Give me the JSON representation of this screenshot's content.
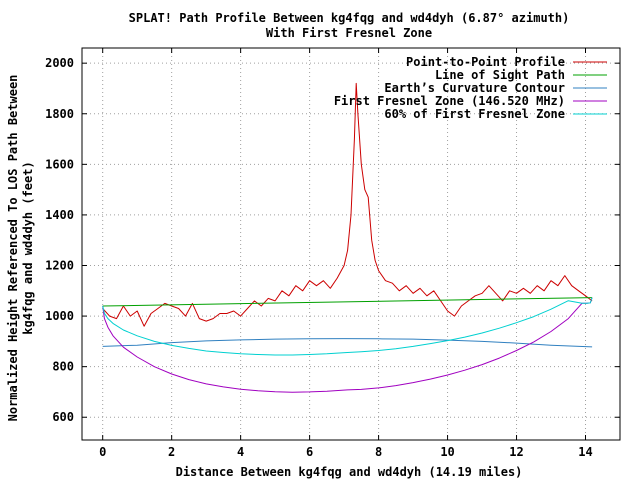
{
  "chart_data": {
    "type": "line",
    "title": "SPLAT! Path Profile Between kg4fqg and wd4dyh (6.87° azimuth)",
    "subtitle": "With First Fresnel Zone",
    "xlabel": "Distance Between kg4fqg and wd4dyh (14.19 miles)",
    "ylabel_line1": "Normalized Height Referenced To LOS Path Between",
    "ylabel_line2": "kg4fqg and wd4dyh (feet)",
    "xlim": [
      -0.6,
      15.0
    ],
    "ylim": [
      510,
      2060
    ],
    "xticks": [
      0,
      2,
      4,
      6,
      8,
      10,
      12,
      14
    ],
    "yticks": [
      600,
      800,
      1000,
      1200,
      1400,
      1600,
      1800,
      2000
    ],
    "grid": true,
    "legend_position": "top-right",
    "series": [
      {
        "name": "Point-to-Point Profile",
        "color": "#cc0000",
        "x": [
          0,
          0.2,
          0.4,
          0.6,
          0.8,
          1.0,
          1.2,
          1.4,
          1.6,
          1.8,
          2.0,
          2.2,
          2.4,
          2.6,
          2.8,
          3.0,
          3.2,
          3.4,
          3.6,
          3.8,
          4.0,
          4.2,
          4.4,
          4.6,
          4.8,
          5.0,
          5.2,
          5.4,
          5.6,
          5.8,
          6.0,
          6.2,
          6.4,
          6.6,
          6.8,
          7.0,
          7.1,
          7.2,
          7.3,
          7.35,
          7.4,
          7.5,
          7.6,
          7.7,
          7.8,
          7.9,
          8.0,
          8.2,
          8.4,
          8.6,
          8.8,
          9.0,
          9.2,
          9.4,
          9.6,
          9.8,
          10.0,
          10.2,
          10.4,
          10.6,
          10.8,
          11.0,
          11.2,
          11.4,
          11.6,
          11.8,
          12.0,
          12.2,
          12.4,
          12.6,
          12.8,
          13.0,
          13.2,
          13.4,
          13.6,
          13.8,
          14.0,
          14.19
        ],
        "y": [
          1030,
          1000,
          990,
          1040,
          1000,
          1020,
          960,
          1010,
          1030,
          1050,
          1040,
          1030,
          1000,
          1050,
          990,
          980,
          990,
          1010,
          1010,
          1020,
          1000,
          1030,
          1060,
          1040,
          1070,
          1060,
          1100,
          1080,
          1120,
          1100,
          1140,
          1120,
          1140,
          1110,
          1150,
          1200,
          1260,
          1400,
          1700,
          1920,
          1800,
          1600,
          1500,
          1470,
          1300,
          1220,
          1180,
          1140,
          1130,
          1100,
          1120,
          1090,
          1110,
          1080,
          1100,
          1060,
          1020,
          1000,
          1040,
          1060,
          1080,
          1090,
          1120,
          1090,
          1060,
          1100,
          1090,
          1110,
          1090,
          1120,
          1100,
          1140,
          1120,
          1160,
          1120,
          1100,
          1080,
          1060
        ]
      },
      {
        "name": "Line of Sight Path",
        "color": "#00a000",
        "x": [
          0,
          14.19
        ],
        "y": [
          1040,
          1073
        ]
      },
      {
        "name": "Earth’s Curvature Contour",
        "color": "#3080c0",
        "x": [
          0,
          1,
          2,
          3,
          4,
          5,
          6,
          7,
          8,
          9,
          10,
          11,
          12,
          13,
          14.19
        ],
        "y": [
          880,
          885,
          895,
          902,
          906,
          909,
          910,
          911,
          910,
          909,
          905,
          900,
          893,
          885,
          878
        ]
      },
      {
        "name": "First Fresnel Zone (146.520 MHz)",
        "color": "#a000c0",
        "x": [
          0,
          0.05,
          0.15,
          0.3,
          0.6,
          1,
          1.5,
          2,
          2.5,
          3,
          3.5,
          4,
          4.5,
          5,
          5.5,
          6,
          6.5,
          7.095,
          7.5,
          8,
          8.5,
          9,
          9.5,
          10,
          10.5,
          11,
          11.5,
          12,
          12.5,
          13,
          13.5,
          13.9,
          14.04,
          14.14,
          14.19
        ],
        "y": [
          1040,
          991,
          956,
          922,
          877,
          838,
          800,
          771,
          749,
          732,
          720,
          711,
          705,
          701,
          699,
          700,
          703,
          708,
          710,
          716,
          725,
          737,
          751,
          767,
          786,
          808,
          834,
          864,
          898,
          939,
          990,
          1051,
          1051,
          1052,
          1073
        ]
      },
      {
        "name": "60% of First Fresnel Zone",
        "color": "#00d0d0",
        "x": [
          0,
          0.05,
          0.15,
          0.3,
          0.6,
          1,
          1.5,
          2,
          2.5,
          3,
          3.5,
          4,
          4.5,
          5,
          5.5,
          6,
          6.5,
          7.095,
          7.5,
          8,
          8.5,
          9,
          9.5,
          10,
          10.5,
          11,
          11.5,
          12,
          12.5,
          13,
          13.5,
          13.9,
          14.04,
          14.14,
          14.19
        ],
        "y": [
          1040,
          1011,
          990,
          971,
          945,
          922,
          900,
          884,
          872,
          862,
          856,
          851,
          848,
          846,
          846,
          848,
          851,
          856,
          859,
          864,
          871,
          880,
          891,
          903,
          917,
          933,
          952,
          974,
          998,
          1027,
          1061,
          1051,
          1051,
          1052,
          1073
        ]
      }
    ]
  }
}
